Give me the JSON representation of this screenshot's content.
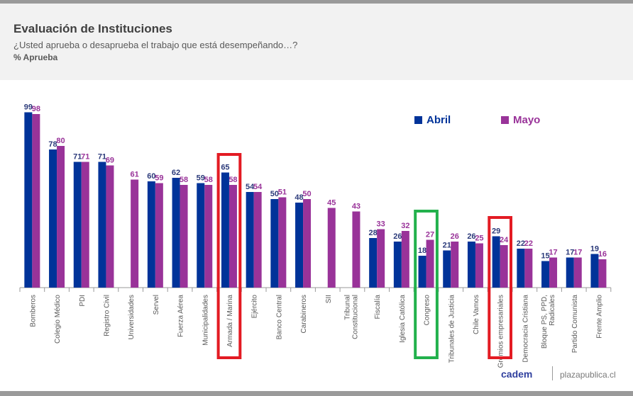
{
  "header": {
    "title": "Evaluación de Instituciones",
    "subtitle": "¿Usted aprueba o desaprueba el trabajo que está desempeñando…?",
    "unit": "% Aprueba"
  },
  "footer": {
    "logo": "cadem",
    "site": "plazapublica.cl"
  },
  "colors": {
    "abril": "#003399",
    "mayo": "#993399",
    "red_highlight": "#e31b23",
    "green_highlight": "#22b14c"
  },
  "chart_data": {
    "type": "bar",
    "title": "Evaluación de Instituciones",
    "subtitle": "¿Usted aprueba o desaprueba el trabajo que está desempeñando…?",
    "ylabel": "% Aprueba",
    "ylim": [
      0,
      100
    ],
    "grid": false,
    "legend": {
      "placement": "top-right",
      "entries": [
        "Abril",
        "Mayo"
      ]
    },
    "categories": [
      "Bomberos",
      "Colegio Médico",
      "PDI",
      "Registro Civil",
      "Universidades",
      "Servel",
      "Fuerza Aérea",
      "Municipalidades",
      "Armada / Marina",
      "Ejército",
      "Banco Central",
      "Carabineros",
      "SII",
      "Tribunal Constitucional",
      "Fiscalía",
      "Iglesia Católica",
      "Congreso",
      "Tribunales de Justicia",
      "Chile Vamos",
      "Gremios empresariales",
      "Democracia Cristiana",
      "Bloque PS, PPD, Radicales",
      "Partido Comunista",
      "Frente Amplio"
    ],
    "series": [
      {
        "name": "Abril",
        "values": [
          99,
          78,
          71,
          71,
          null,
          60,
          62,
          59,
          65,
          54,
          50,
          48,
          null,
          null,
          28,
          26,
          18,
          21,
          26,
          29,
          22,
          15,
          17,
          19
        ]
      },
      {
        "name": "Mayo",
        "values": [
          98,
          80,
          71,
          69,
          61,
          59,
          58,
          58,
          58,
          54,
          51,
          50,
          45,
          43,
          33,
          32,
          27,
          26,
          25,
          24,
          22,
          17,
          17,
          16
        ]
      }
    ],
    "highlights": [
      {
        "category": "Armada / Marina",
        "color": "red"
      },
      {
        "category": "Congreso",
        "color": "green"
      },
      {
        "category": "Gremios empresariales",
        "color": "red"
      }
    ]
  }
}
